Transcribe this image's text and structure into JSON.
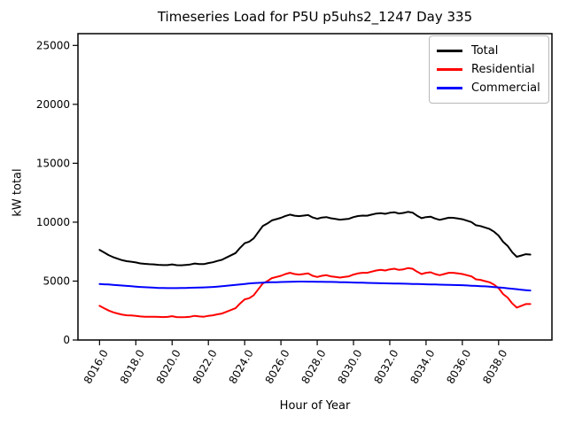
{
  "figure": {
    "title": "Timeseries Load for P5U p5uhs2_1247  Day 335",
    "xlabel": "Hour of Year",
    "ylabel": "kW total"
  },
  "legend": {
    "items": [
      {
        "label": "Total",
        "color": "#000000"
      },
      {
        "label": "Residential",
        "color": "#ff0000"
      },
      {
        "label": "Commercial",
        "color": "#0000ff"
      }
    ]
  },
  "chart_data": {
    "type": "line",
    "title": "Timeseries Load for P5U p5uhs2_1247  Day 335",
    "xlabel": "Hour of Year",
    "ylabel": "kW total",
    "grid": false,
    "legend_position": "upper right",
    "xlim": [
      8014.81,
      8040.94
    ],
    "ylim": [
      0,
      26000
    ],
    "x_tick_values": [
      8016,
      8018,
      8020,
      8022,
      8024,
      8026,
      8028,
      8030,
      8032,
      8034,
      8036,
      8038
    ],
    "x_tick_labels": [
      "8016.0",
      "8018.0",
      "8020.0",
      "8022.0",
      "8024.0",
      "8026.0",
      "8028.0",
      "8030.0",
      "8032.0",
      "8034.0",
      "8036.0",
      "8038.0"
    ],
    "y_tick_values": [
      0,
      5000,
      10000,
      15000,
      20000,
      25000
    ],
    "y_tick_labels": [
      "0",
      "5000",
      "10000",
      "15000",
      "20000",
      "25000"
    ],
    "x": [
      8016.0,
      8016.25,
      8016.5,
      8016.75,
      8017.0,
      8017.25,
      8017.5,
      8017.75,
      8018.0,
      8018.25,
      8018.5,
      8018.75,
      8019.0,
      8019.25,
      8019.5,
      8019.75,
      8020.0,
      8020.25,
      8020.5,
      8020.75,
      8021.0,
      8021.25,
      8021.5,
      8021.75,
      8022.0,
      8022.25,
      8022.5,
      8022.75,
      8023.0,
      8023.25,
      8023.5,
      8023.75,
      8024.0,
      8024.25,
      8024.5,
      8024.75,
      8025.0,
      8025.25,
      8025.5,
      8025.75,
      8026.0,
      8026.25,
      8026.5,
      8026.75,
      8027.0,
      8027.25,
      8027.5,
      8027.75,
      8028.0,
      8028.25,
      8028.5,
      8028.75,
      8029.0,
      8029.25,
      8029.5,
      8029.75,
      8030.0,
      8030.25,
      8030.5,
      8030.75,
      8031.0,
      8031.25,
      8031.5,
      8031.75,
      8032.0,
      8032.25,
      8032.5,
      8032.75,
      8033.0,
      8033.25,
      8033.5,
      8033.75,
      8034.0,
      8034.25,
      8034.5,
      8034.75,
      8035.0,
      8035.25,
      8035.5,
      8035.75,
      8036.0,
      8036.25,
      8036.5,
      8036.75,
      8037.0,
      8037.25,
      8037.5,
      8037.75,
      8038.0,
      8038.25,
      8038.5,
      8038.75,
      8039.0,
      8039.25,
      8039.5,
      8039.75
    ],
    "series": [
      {
        "name": "Total",
        "color": "#000000",
        "values": [
          7650,
          7430,
          7210,
          7030,
          6900,
          6770,
          6690,
          6640,
          6580,
          6500,
          6460,
          6430,
          6420,
          6380,
          6360,
          6360,
          6420,
          6350,
          6340,
          6370,
          6410,
          6490,
          6450,
          6440,
          6530,
          6600,
          6710,
          6810,
          7000,
          7190,
          7380,
          7820,
          8210,
          8350,
          8630,
          9150,
          9670,
          9890,
          10150,
          10260,
          10370,
          10530,
          10640,
          10550,
          10510,
          10560,
          10600,
          10400,
          10290,
          10390,
          10430,
          10330,
          10270,
          10210,
          10250,
          10290,
          10430,
          10520,
          10560,
          10550,
          10640,
          10730,
          10770,
          10710,
          10800,
          10840,
          10740,
          10780,
          10870,
          10810,
          10550,
          10340,
          10430,
          10470,
          10310,
          10200,
          10290,
          10380,
          10370,
          10310,
          10250,
          10130,
          10010,
          9740,
          9670,
          9550,
          9420,
          9190,
          8860,
          8330,
          7990,
          7450,
          7060,
          7170,
          7280,
          7250
        ]
      },
      {
        "name": "Residential",
        "color": "#ff0000",
        "values": [
          2900,
          2700,
          2500,
          2350,
          2250,
          2150,
          2100,
          2080,
          2050,
          2000,
          1980,
          1970,
          1980,
          1960,
          1950,
          1960,
          2020,
          1950,
          1930,
          1950,
          1980,
          2050,
          2000,
          1980,
          2050,
          2100,
          2180,
          2250,
          2400,
          2550,
          2700,
          3100,
          3450,
          3550,
          3800,
          4300,
          4800,
          5000,
          5250,
          5350,
          5450,
          5600,
          5700,
          5600,
          5550,
          5600,
          5650,
          5450,
          5350,
          5450,
          5500,
          5400,
          5350,
          5300,
          5350,
          5400,
          5550,
          5650,
          5700,
          5700,
          5800,
          5900,
          5950,
          5900,
          6000,
          6050,
          5950,
          6000,
          6100,
          6050,
          5800,
          5600,
          5700,
          5750,
          5600,
          5500,
          5600,
          5700,
          5700,
          5650,
          5600,
          5500,
          5400,
          5150,
          5100,
          5000,
          4900,
          4700,
          4400,
          3900,
          3600,
          3100,
          2750,
          2900,
          3050,
          3050
        ]
      },
      {
        "name": "Commercial",
        "color": "#0000ff",
        "values": [
          4750,
          4730,
          4710,
          4680,
          4650,
          4620,
          4590,
          4560,
          4530,
          4500,
          4480,
          4460,
          4440,
          4420,
          4410,
          4400,
          4400,
          4400,
          4410,
          4420,
          4430,
          4440,
          4450,
          4460,
          4480,
          4500,
          4530,
          4560,
          4600,
          4640,
          4680,
          4720,
          4760,
          4800,
          4830,
          4850,
          4870,
          4890,
          4900,
          4910,
          4920,
          4930,
          4940,
          4950,
          4960,
          4960,
          4950,
          4950,
          4940,
          4940,
          4930,
          4930,
          4920,
          4910,
          4900,
          4890,
          4880,
          4870,
          4860,
          4850,
          4840,
          4830,
          4820,
          4810,
          4800,
          4790,
          4790,
          4780,
          4770,
          4760,
          4750,
          4740,
          4730,
          4720,
          4710,
          4700,
          4690,
          4680,
          4670,
          4660,
          4650,
          4630,
          4610,
          4590,
          4570,
          4550,
          4520,
          4490,
          4460,
          4430,
          4390,
          4350,
          4310,
          4270,
          4230,
          4200
        ]
      }
    ]
  }
}
